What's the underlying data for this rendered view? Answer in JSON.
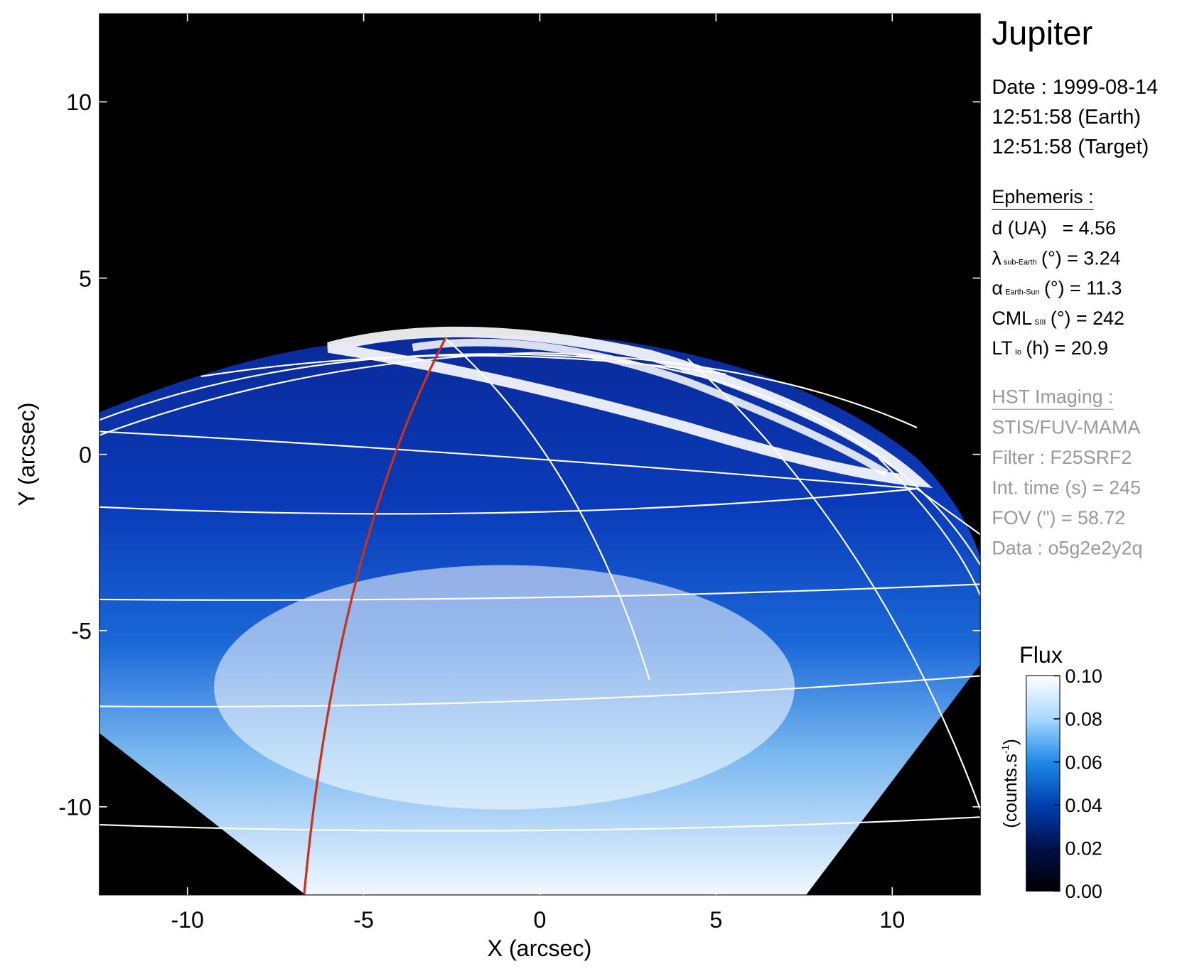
{
  "chart_data": {
    "type": "image",
    "xlabel": "X (arcsec)",
    "ylabel": "Y (arcsec)",
    "xlim": [
      -12.5,
      12.5
    ],
    "ylim": [
      -12.5,
      12.5
    ],
    "xticks": [
      -10,
      -5,
      0,
      5,
      10
    ],
    "yticks": [
      -10,
      -5,
      0,
      5,
      10
    ],
    "colormap": [
      "#000000",
      "#00104a",
      "#0040b0",
      "#1e8ae6",
      "#a8d8ff",
      "#ffffff"
    ],
    "colorbar": {
      "title": "Flux",
      "label": {
        "text": "(counts.s",
        "sup": "-1",
        "end": ")"
      },
      "lim": [
        0,
        0.1
      ],
      "ticks": [
        {
          "value": 0,
          "label": "0.00"
        },
        {
          "value": 0.02,
          "label": "0.02"
        },
        {
          "value": 0.04,
          "label": "0.04"
        },
        {
          "value": 0.06,
          "label": "0.06"
        },
        {
          "value": 0.08,
          "label": "0.08"
        },
        {
          "value": 0.1,
          "label": "0.10"
        }
      ]
    }
  },
  "panel": {
    "title": "Jupiter",
    "date": [
      "Date : 1999-08-14",
      "12:51:58 (Earth)",
      "12:51:58 (Target)"
    ],
    "ephemeris_title": "Ephemeris :",
    "ephemeris": [
      {
        "name": "d (UA)",
        "rest": "= 4.56"
      },
      {
        "name": "λ",
        "sub": "sub-Earth",
        "rest": "(°) = 3.24"
      },
      {
        "name": "α",
        "sub": "Earth-Sun",
        "rest": "(°) = 11.3"
      },
      {
        "name": "CML",
        "sub": "SIII",
        "rest": "(°) = 242"
      },
      {
        "name": "LT",
        "sub": "Io",
        "rest": "(h) = 20.9"
      }
    ],
    "imaging_title": "HST Imaging :",
    "imaging": [
      "STIS/FUV-MAMA",
      "Filter : F25SRF2",
      "Int. time (s) = 245",
      "FOV (\") = 58.72",
      "Data : o5g2e2y2q"
    ]
  }
}
